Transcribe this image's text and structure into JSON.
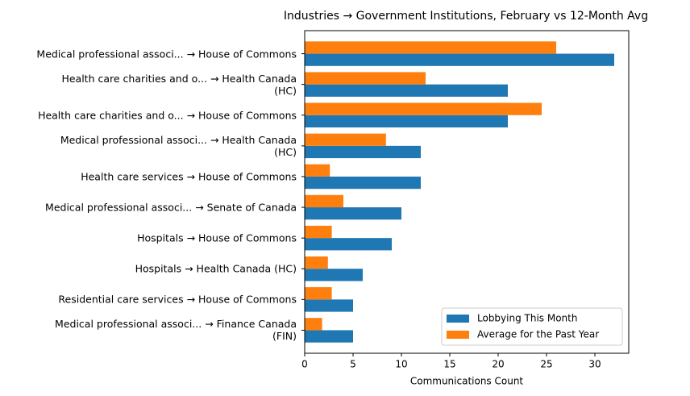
{
  "chart_data": {
    "type": "barh",
    "title": "Industries → Government Institutions, February vs 12-Month Avg",
    "x_label": "Communications Count",
    "categories": [
      "Medical professional associ... → House of Commons",
      "Health care charities and o... → Health Canada\n(HC)",
      "Health care charities and o... → House of Commons",
      "Medical professional associ... → Health Canada\n(HC)",
      "Health care services → House of Commons",
      "Medical professional associ... → Senate of Canada",
      "Hospitals → House of Commons",
      "Hospitals → Health Canada (HC)",
      "Residential care services → House of Commons",
      "Medical professional associ... → Finance Canada\n(FIN)"
    ],
    "series": [
      {
        "name": "Lobbying This Month",
        "color": "#1f77b4",
        "values": [
          32,
          21,
          21,
          12,
          12,
          10,
          9,
          6,
          5,
          5
        ]
      },
      {
        "name": "Average for the Past Year",
        "color": "#ff7f0e",
        "values": [
          26,
          12.5,
          24.5,
          8.4,
          2.6,
          4.0,
          2.8,
          2.4,
          2.8,
          1.8
        ]
      }
    ],
    "xlim": [
      0,
      33.5
    ],
    "xticks": [
      0,
      5,
      10,
      15,
      20,
      25,
      30
    ],
    "legend": "lower right",
    "grid": false
  }
}
